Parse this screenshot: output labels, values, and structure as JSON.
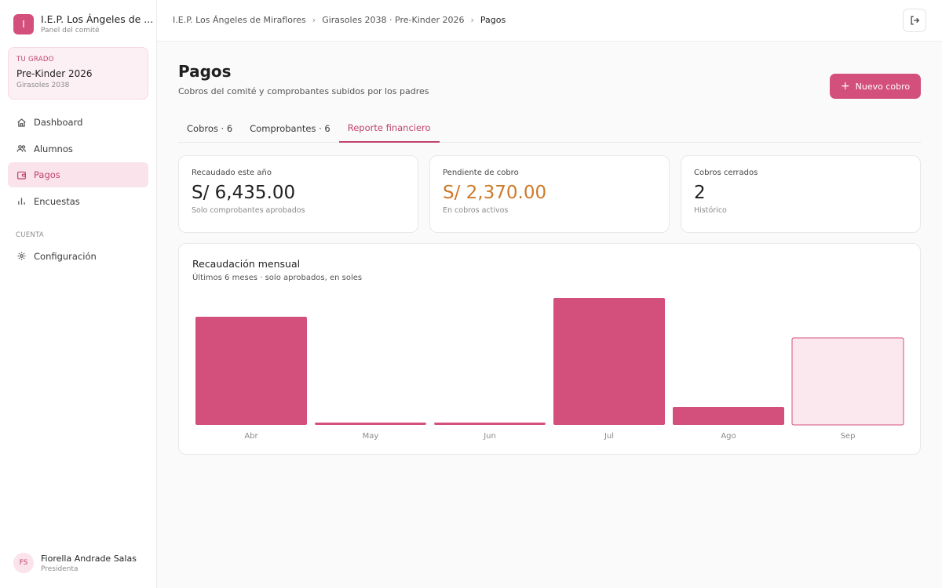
{
  "brand": {
    "logo_letter": "I",
    "name": "I.E.P. Los Ángeles de ...",
    "subtitle": "Panel del comité"
  },
  "grade": {
    "eyebrow": "TU GRADO",
    "title": "Pre-Kinder 2026",
    "subtitle": "Girasoles 2038"
  },
  "nav": {
    "items": [
      {
        "label": "Dashboard",
        "icon": "home-icon"
      },
      {
        "label": "Alumnos",
        "icon": "users-icon"
      },
      {
        "label": "Pagos",
        "icon": "wallet-icon",
        "active": true
      },
      {
        "label": "Encuestas",
        "icon": "bar-chart-icon"
      }
    ],
    "section_label": "CUENTA",
    "settings_label": "Configuración"
  },
  "user": {
    "initials": "FS",
    "name": "Fiorella Andrade Salas",
    "role": "Presidenta"
  },
  "breadcrumb": {
    "items": [
      "I.E.P. Los Ángeles de Miraflores",
      "Girasoles 2038 · Pre-Kinder 2026",
      "Pagos"
    ],
    "separator": "›"
  },
  "page": {
    "title": "Pagos",
    "subtitle": "Cobros del comité y comprobantes subidos por los padres",
    "new_button_label": "Nuevo cobro"
  },
  "tabs": [
    {
      "label": "Cobros · 6"
    },
    {
      "label": "Comprobantes · 6"
    },
    {
      "label": "Reporte financiero",
      "active": true
    }
  ],
  "stats": [
    {
      "label": "Recaudado este año",
      "value": "S/ 6,435.00",
      "note": "Solo comprobantes aprobados"
    },
    {
      "label": "Pendiente de cobro",
      "value": "S/ 2,370.00",
      "note": "En cobros activos"
    },
    {
      "label": "Cobros cerrados",
      "value": "2",
      "note": "Histórico"
    }
  ],
  "colors": {
    "accent": "#d4507c",
    "accent_light": "#fbe7ee",
    "warning": "#cf7a2a"
  },
  "chart_data": {
    "type": "bar",
    "title": "Recaudación mensual",
    "subtitle": "Últimos 6 meses · solo aprobados, en soles",
    "categories": [
      "Abr",
      "May",
      "Jun",
      "Jul",
      "Ago",
      "Sep"
    ],
    "values": [
      1380,
      30,
      30,
      1620,
      230,
      1110
    ],
    "highlight_last": true,
    "grid": false,
    "ylim": [
      0,
      1620
    ]
  }
}
